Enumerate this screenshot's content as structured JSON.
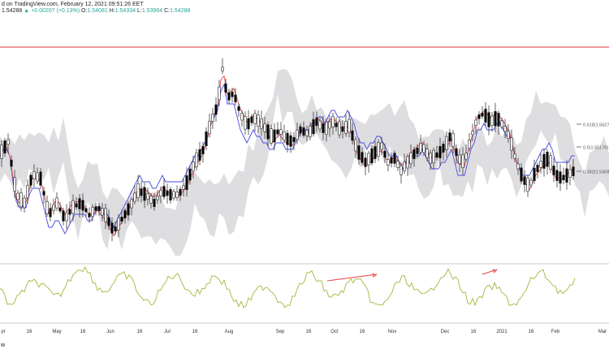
{
  "header": {
    "source_line": "d on TradingView.com, February 12, 2021 09:51:26 EET",
    "last": "1.54288",
    "change_arrow": "▲",
    "change": "+0.00207 (+0.13%)",
    "o_label": "O:",
    "o_value": "1.54081",
    "h_label": "H:",
    "h_value": "1.54334",
    "l_label": "L:",
    "l_value": "1.53964",
    "c_label": "C:",
    "c_value": "1.54288"
  },
  "logo_text": "w",
  "colors": {
    "up": "#26a69a",
    "down": "#000000",
    "candle": "#222222",
    "kijun": "#4a4ae6",
    "tenkan": "#e84848",
    "cloud": "#d8d8dc",
    "hline": "#e03030",
    "oscillator": "#a8b43c",
    "arrow": "#e84040",
    "fib": "#555555"
  },
  "chart_data": {
    "type": "candlestick",
    "series": [
      "price",
      "tenkan",
      "kijun",
      "cloud",
      "oscillator"
    ],
    "x_tick_labels": [
      "pr",
      "16",
      "May",
      "16",
      "Jun",
      "16",
      "Jul",
      "16",
      "Aug",
      "Sep",
      "16",
      "Oct",
      "16",
      "Nov",
      "Dec",
      "16",
      "2021",
      "16",
      "Feb",
      "Mar"
    ],
    "fib_levels": [
      {
        "label": "0.618(1.5627",
        "value": 1.5627
      },
      {
        "label": "0.5(1.55178)",
        "value": 1.55178
      },
      {
        "label": "0.382(1.5408",
        "value": 1.5408
      }
    ],
    "horizontal_line": "top resistance",
    "annotations": [
      "arrow-1 (oscillator, Nov)",
      "arrow-2 (oscillator, Dec–Jan)"
    ]
  }
}
